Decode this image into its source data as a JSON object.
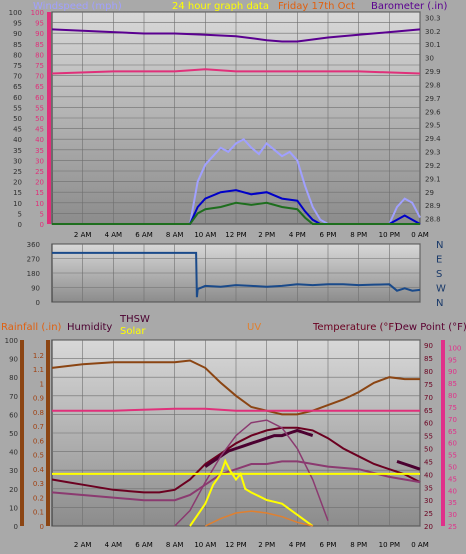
{
  "colors": {
    "page_bg": "#a9a9a9",
    "plot_bg_top": "#d8d8d8",
    "plot_bg_bottom": "#8c8c8c",
    "grid": "#6f6f6f",
    "windspeed": "#a0a0ff",
    "wind_avg": "#0000c8",
    "wind_gust": "#1e6e1e",
    "barometer": "#5a0090",
    "pink_line": "#e0307a",
    "direction": "#1a4a8a",
    "rain_axis": "#e06010",
    "humidity": "#8b4513",
    "thsw": "#4b0030",
    "solar": "#ffff00",
    "uv": "#e08030",
    "temperature": "#6b0020",
    "dewpoint": "#e0308a",
    "purple_curve": "#8b3a70",
    "dark_text": "#5a0030"
  },
  "header": {
    "title": "24 hour graph data",
    "date_text": "Friday 17th Oct"
  },
  "chart_data": [
    {
      "type": "line",
      "title": "",
      "ylabel_left": "Windspeed (mph)",
      "ylabel_right": "Barometer (.in)",
      "xlabel": "",
      "x_ticks": [
        "2 AM",
        "4 AM",
        "6 AM",
        "8 AM",
        "10 AM",
        "12 PM",
        "2 PM",
        "4 PM",
        "6 PM",
        "8 PM",
        "10 PM",
        "0 AM"
      ],
      "left_ticks": [
        0,
        5,
        10,
        15,
        20,
        25,
        30,
        35,
        40,
        45,
        50,
        55,
        60,
        65,
        70,
        75,
        80,
        85,
        90,
        95,
        100
      ],
      "left_pink_ticks": [
        0,
        5,
        10,
        15,
        20,
        25,
        30,
        35,
        40,
        45,
        50,
        55,
        60,
        65,
        70,
        75,
        80,
        85,
        90,
        95,
        100
      ],
      "right_ticks": [
        "28.8",
        "28.9",
        "29",
        "29.1",
        "29.2",
        "29.3",
        "29.4",
        "29.5",
        "29.6",
        "29.7",
        "29.8",
        "29.9",
        "30",
        "30.1",
        "30.2",
        "30.3"
      ],
      "ylim_left": [
        0,
        100
      ],
      "ylim_right": [
        28.76,
        30.34
      ],
      "series": [
        {
          "name": "Windspeed",
          "axis": "left",
          "x": [
            0,
            1,
            2,
            3,
            4,
            5,
            6,
            7,
            8,
            8.5,
            9,
            9.5,
            10,
            10.5,
            11,
            11.5,
            12,
            12.5,
            13,
            13.5,
            14,
            14.5,
            15,
            15.5,
            16,
            16.5,
            17,
            17.5,
            18,
            19,
            20,
            21,
            22,
            22.5,
            23,
            23.5,
            24
          ],
          "values": [
            0,
            0,
            0,
            0,
            0,
            0,
            0,
            0,
            0,
            0,
            0,
            20,
            28,
            32,
            36,
            34,
            38,
            40,
            36,
            33,
            38,
            35,
            32,
            34,
            30,
            18,
            8,
            2,
            0,
            0,
            0,
            0,
            0,
            8,
            12,
            10,
            3
          ]
        },
        {
          "name": "Wind avg",
          "axis": "left",
          "x": [
            0,
            8,
            8.5,
            9,
            9.5,
            10,
            11,
            12,
            13,
            14,
            15,
            16,
            16.5,
            17,
            17.5,
            18,
            22,
            22.5,
            23,
            23.5,
            24
          ],
          "values": [
            0,
            0,
            0,
            0,
            8,
            12,
            15,
            16,
            14,
            15,
            12,
            11,
            6,
            2,
            0,
            0,
            0,
            2,
            4,
            2,
            0
          ]
        },
        {
          "name": "Wind gust",
          "axis": "left",
          "x": [
            0,
            9,
            9.5,
            10,
            11,
            12,
            13,
            14,
            15,
            16,
            16.5,
            17,
            24
          ],
          "values": [
            0,
            0,
            5,
            7,
            8,
            10,
            9,
            10,
            8,
            7,
            3,
            0,
            0
          ]
        },
        {
          "name": "Barometer",
          "axis": "right",
          "x": [
            0,
            2,
            4,
            6,
            8,
            10,
            12,
            14,
            15,
            16,
            18,
            20,
            22,
            24
          ],
          "values": [
            30.21,
            30.2,
            30.19,
            30.18,
            30.18,
            30.17,
            30.16,
            30.13,
            30.12,
            30.12,
            30.15,
            30.17,
            30.19,
            30.21
          ]
        },
        {
          "name": "Pink",
          "axis": "left",
          "x": [
            0,
            4,
            8,
            10,
            12,
            16,
            20,
            24
          ],
          "values": [
            71,
            72,
            72,
            73,
            72,
            72,
            72,
            71
          ]
        }
      ]
    },
    {
      "type": "line",
      "title": "",
      "x_ticks": [],
      "left_ticks": [
        0,
        90,
        180,
        270,
        360
      ],
      "right_labels": [
        "N",
        "W",
        "S",
        "E",
        "N"
      ],
      "ylim": [
        0,
        360
      ],
      "series": [
        {
          "name": "Wind direction",
          "x": [
            0,
            4,
            8,
            9.4,
            9.45,
            9.5,
            10,
            11,
            12,
            13,
            14,
            15,
            16,
            17,
            18,
            19,
            20,
            21,
            22,
            22.5,
            23,
            23.5,
            24
          ],
          "values": [
            305,
            305,
            305,
            305,
            30,
            80,
            100,
            95,
            105,
            100,
            95,
            100,
            110,
            105,
            110,
            110,
            105,
            108,
            110,
            70,
            85,
            70,
            75
          ]
        }
      ]
    },
    {
      "type": "line",
      "title": "",
      "labels": {
        "rainfall": "Rainfall (.in)",
        "humidity": "Humidity",
        "thsw": "THSW",
        "solar": "Solar",
        "uv": "UV",
        "temperature": "Temperature (°F)",
        "dewpoint": "Dew Point (°F)"
      },
      "x_ticks": [
        "2 AM",
        "4 AM",
        "6 AM",
        "8 AM",
        "10 AM",
        "12 PM",
        "2 PM",
        "4 PM",
        "6 PM",
        "8 PM",
        "10 PM",
        "0 AM"
      ],
      "left_ticks": [
        0,
        10,
        20,
        30,
        40,
        50,
        60,
        70,
        80,
        90,
        100
      ],
      "left_rain_ticks": [
        "0",
        "0.1",
        "0.2",
        "0.3",
        "0.4",
        "0.5",
        "0.6",
        "0.7",
        "0.8",
        "0.9",
        "1",
        "1.1",
        "1.2"
      ],
      "right_temp_ticks": [
        20,
        25,
        30,
        35,
        40,
        45,
        50,
        55,
        60,
        65,
        70,
        75,
        80,
        85,
        90
      ],
      "right_dew_ticks": [
        25,
        30,
        35,
        40,
        45,
        50,
        55,
        60,
        65,
        70,
        75,
        80,
        85,
        90,
        95,
        100
      ],
      "ylim_left": [
        0,
        100
      ],
      "ylim_right": [
        20,
        92
      ],
      "series": [
        {
          "name": "Humidity",
          "axis": "left",
          "x": [
            0,
            2,
            4,
            6,
            8,
            9,
            10,
            11,
            12,
            13,
            14,
            15,
            16,
            17,
            18,
            19,
            20,
            21,
            22,
            23,
            24
          ],
          "values": [
            85,
            87,
            88,
            88,
            88,
            89,
            85,
            77,
            70,
            64,
            62,
            60,
            60,
            62,
            65,
            68,
            72,
            77,
            80,
            79,
            79
          ]
        },
        {
          "name": "Pink",
          "axis": "left",
          "x": [
            0,
            4,
            8,
            10,
            12,
            16,
            20,
            24
          ],
          "values": [
            62,
            62,
            63,
            63,
            62,
            62,
            62,
            62
          ]
        },
        {
          "name": "Temperature",
          "axis": "right",
          "x": [
            0,
            1,
            2,
            4,
            6,
            7,
            8,
            9,
            10,
            11,
            12,
            13,
            14,
            15,
            16,
            17,
            18,
            19,
            20,
            21,
            22,
            23,
            24
          ],
          "values": [
            38,
            37,
            36,
            34,
            33,
            33,
            34,
            38,
            44,
            48,
            52,
            55,
            57,
            58,
            58,
            57,
            54,
            50,
            47,
            44,
            42,
            40,
            37
          ]
        },
        {
          "name": "THSW",
          "axis": "right",
          "x": [
            0,
            8.5,
            9,
            9.5,
            10,
            10.5,
            11,
            11.5,
            12,
            12.5,
            13,
            13.5,
            14,
            14.5,
            15,
            15.5,
            16,
            16.5,
            17,
            22,
            22.5,
            23,
            23.5,
            24
          ],
          "values": [
            null,
            null,
            null,
            null,
            43,
            45,
            47,
            49,
            50,
            51,
            52,
            53,
            54,
            55,
            55,
            56,
            57,
            56,
            55,
            null,
            45,
            44,
            43,
            42
          ]
        },
        {
          "name": "Dew Point",
          "axis": "right",
          "x": [
            0,
            2,
            4,
            6,
            8,
            9,
            10,
            11,
            12,
            13,
            14,
            15,
            16,
            17,
            18,
            20,
            22,
            24
          ],
          "values": [
            33,
            32,
            31,
            30,
            30,
            32,
            36,
            40,
            42,
            44,
            44,
            45,
            45,
            44,
            43,
            42,
            39,
            37
          ]
        },
        {
          "name": "Purple curve",
          "axis": "right",
          "x": [
            8,
            9,
            10,
            11,
            12,
            13,
            14,
            15,
            16,
            17,
            18
          ],
          "values": [
            20,
            26,
            37,
            47,
            55,
            60,
            61,
            58,
            50,
            38,
            22
          ]
        },
        {
          "name": "Solar",
          "axis": "left",
          "x": [
            9,
            9.5,
            10,
            10.5,
            11,
            11.3,
            11.6,
            12,
            12.3,
            12.6,
            13,
            13.5,
            14,
            14.5,
            15,
            15.5,
            16,
            16.5,
            17
          ],
          "values": [
            0,
            6,
            12,
            22,
            28,
            35,
            30,
            25,
            28,
            20,
            18,
            16,
            14,
            13,
            12,
            9,
            6,
            3,
            0
          ]
        },
        {
          "name": "UV",
          "axis": "left",
          "x": [
            10,
            11,
            12,
            13,
            14,
            15,
            16,
            17
          ],
          "values": [
            0,
            4,
            7,
            8,
            7,
            5,
            2,
            0
          ]
        },
        {
          "name": "Yellow level",
          "axis": "left",
          "x": [
            0,
            24
          ],
          "values": [
            28,
            28
          ]
        }
      ]
    }
  ]
}
